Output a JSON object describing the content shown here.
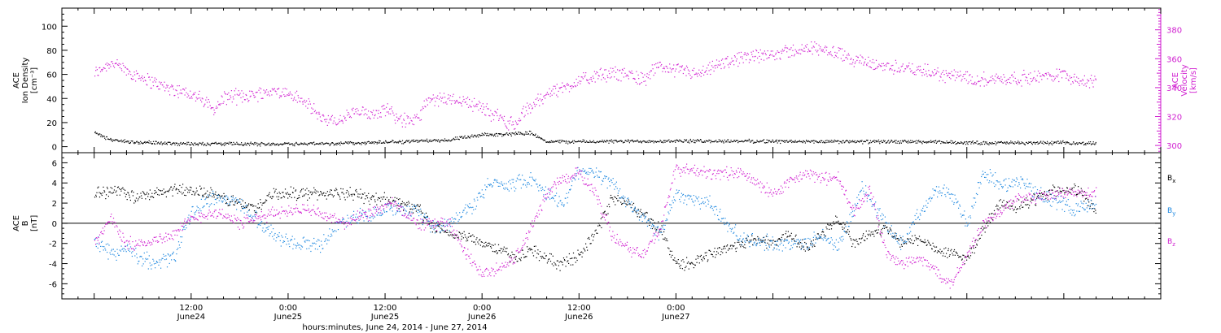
{
  "chart_data": [
    {
      "type": "scatter",
      "panel": "top",
      "left_axis": {
        "title_lines": [
          "ACE",
          "Ion Density",
          "[cm⁻³]"
        ],
        "range": [
          -5,
          115
        ],
        "ticks": [
          0,
          20,
          40,
          60,
          80,
          100
        ],
        "tick_labels": [
          "0",
          "20",
          "40",
          "60",
          "80",
          "100"
        ]
      },
      "right_axis": {
        "title_lines": [
          "ACE",
          "Velocity",
          "[km/s]"
        ],
        "range": [
          295,
          395
        ],
        "ticks": [
          300,
          320,
          340,
          360,
          380
        ],
        "tick_labels": [
          "300",
          "320",
          "340",
          "360",
          "380"
        ],
        "color": "#d01ed0"
      },
      "series": [
        {
          "color": "#000000",
          "axis": "left",
          "trend_x_hours": [
            0,
            1,
            2,
            5,
            10,
            20,
            30,
            36,
            44,
            48,
            52,
            54,
            56,
            60,
            70,
            80,
            90,
            100,
            110,
            120,
            124
          ],
          "trend_y": [
            12,
            9,
            6,
            4,
            3,
            2.5,
            3,
            4,
            6,
            10,
            11,
            12,
            4.5,
            4.5,
            5,
            5,
            4.5,
            4.5,
            3.5,
            3.5,
            3
          ]
        },
        {
          "color": "#d01ed0",
          "axis": "right",
          "trend_x_hours": [
            0,
            2,
            4,
            8,
            12,
            15,
            16,
            18,
            22,
            24,
            26,
            28,
            30,
            32,
            34,
            36,
            38,
            40,
            41,
            44,
            46,
            48,
            50,
            52,
            53,
            55,
            56,
            58,
            60,
            62,
            64,
            66,
            68,
            70,
            72,
            75,
            78,
            84,
            90,
            96,
            100,
            104,
            110,
            116,
            120,
            122,
            124
          ],
          "trend_y": [
            350,
            358,
            352,
            342,
            336,
            325,
            334,
            334,
            338,
            336,
            330,
            320,
            316,
            323,
            322,
            326,
            318,
            318,
            330,
            333,
            331,
            326,
            320,
            314,
            322,
            332,
            336,
            340,
            345,
            348,
            350,
            350,
            346,
            355,
            353,
            349,
            358,
            364,
            368,
            356,
            354,
            350,
            346,
            347,
            350,
            345,
            344
          ]
        }
      ]
    },
    {
      "type": "scatter",
      "panel": "bottom",
      "axis": {
        "title_lines": [
          "ACE",
          "B",
          "[nT]"
        ],
        "range": [
          -7.5,
          7
        ],
        "ticks": [
          -6,
          -4,
          -2,
          0,
          2,
          4,
          6
        ],
        "tick_labels": [
          "-6",
          "-4",
          "-2",
          "0",
          "2",
          "4",
          "6"
        ]
      },
      "zero_line": true,
      "legend": [
        {
          "label": "B",
          "sub": "x",
          "color": "#000000"
        },
        {
          "label": "B",
          "sub": "y",
          "color": "#1e88e0"
        },
        {
          "label": "B",
          "sub": "z",
          "color": "#d01ed0"
        }
      ],
      "series": [
        {
          "label": "Bx",
          "color": "#000000",
          "trend_x_hours": [
            0,
            3,
            5,
            8,
            10,
            14,
            16,
            20,
            22,
            25,
            28,
            32,
            34,
            36,
            40,
            42,
            44,
            47,
            50,
            52,
            54,
            56,
            58,
            60,
            62,
            64,
            66,
            70,
            72,
            74,
            76,
            80,
            82,
            84,
            86,
            88,
            92,
            94,
            96,
            98,
            100,
            102,
            104,
            106,
            108,
            110,
            112,
            114,
            118,
            120,
            122,
            124
          ],
          "trend_y": [
            3,
            3.5,
            2.5,
            3,
            3.5,
            3,
            2.5,
            1.5,
            3,
            3,
            3,
            3,
            2.5,
            2.5,
            1.5,
            -0.5,
            -1,
            -1.5,
            -2.5,
            -3.5,
            -2.5,
            -3.5,
            -4,
            -3,
            -1,
            2.5,
            2,
            -0.5,
            -4,
            -4,
            -3,
            -2,
            -1.5,
            -2,
            -1,
            -2.5,
            0.5,
            -2,
            -1,
            -0.5,
            -2,
            -1.5,
            -2.5,
            -3,
            -3.5,
            -0.5,
            2,
            1.5,
            3,
            3.5,
            3.2,
            1
          ]
        },
        {
          "label": "By",
          "color": "#1e88e0",
          "trend_x_hours": [
            0,
            2,
            4,
            6,
            8,
            10,
            12,
            14,
            16,
            18,
            20,
            22,
            25,
            28,
            31,
            34,
            37,
            40,
            42,
            44,
            47,
            49,
            52,
            54,
            56,
            58,
            60,
            62,
            64,
            66,
            68,
            70,
            72,
            76,
            80,
            84,
            88,
            90,
            92,
            95,
            98,
            100,
            102,
            104,
            106,
            108,
            110,
            112,
            115,
            118,
            121,
            124
          ],
          "trend_y": [
            -1.5,
            -3,
            -2.5,
            -3.5,
            -4,
            -3,
            1,
            2.5,
            2.5,
            2,
            0.5,
            -1,
            -2,
            -2,
            0.5,
            1,
            1.5,
            1,
            -0.5,
            0,
            2,
            4,
            4,
            4.5,
            3,
            2,
            5.5,
            5,
            4,
            2,
            0.5,
            -1,
            3,
            2,
            -1.5,
            -2,
            -2,
            -1,
            -2.5,
            3.5,
            0,
            -2,
            1,
            3.5,
            3,
            0,
            5,
            4,
            4,
            2.5,
            1.5,
            2
          ]
        },
        {
          "label": "Bz",
          "color": "#d01ed0",
          "trend_x_hours": [
            0,
            2,
            4,
            6,
            8,
            10,
            12,
            14,
            16,
            18,
            20,
            22,
            25,
            28,
            31,
            34,
            37,
            40,
            44,
            46,
            48,
            50,
            52,
            54,
            56,
            58,
            60,
            62,
            64,
            66,
            68,
            70,
            72,
            76,
            80,
            84,
            88,
            90,
            92,
            94,
            96,
            98,
            100,
            102,
            104,
            106,
            108,
            110,
            112,
            114,
            116,
            120,
            124
          ],
          "trend_y": [
            -2,
            0.5,
            -2,
            -2,
            -1.5,
            -1,
            0.5,
            1,
            1,
            0,
            0.5,
            1,
            1.5,
            1,
            0,
            1,
            2,
            0,
            0,
            -3,
            -5,
            -4.5,
            -3.5,
            -0.5,
            3,
            4.5,
            5,
            3,
            -1,
            -2.5,
            -3,
            -0.5,
            5.5,
            5,
            5,
            3,
            5,
            4.5,
            4.5,
            1,
            3.5,
            -3,
            -4,
            -3.5,
            -4.5,
            -6,
            -3,
            0,
            1,
            2.5,
            2.5,
            3,
            3
          ]
        }
      ]
    }
  ],
  "x_axis": {
    "range_hours": [
      -4,
      132
    ],
    "tick_positions_hours": [
      12,
      24,
      36,
      48,
      60,
      72,
      84,
      96,
      108,
      120
    ],
    "labels": [
      {
        "at_hours": 12,
        "lines": [
          "12:00",
          "June24"
        ]
      },
      {
        "at_hours": 24,
        "lines": [
          "0:00",
          "June25"
        ]
      },
      {
        "at_hours": 36,
        "lines": [
          "12:00",
          "June25"
        ]
      },
      {
        "at_hours": 48,
        "lines": [
          "0:00",
          "June26"
        ]
      },
      {
        "at_hours": 60,
        "lines": [
          "12:00",
          "June26"
        ]
      },
      {
        "at_hours": 72,
        "lines": [
          "0:00",
          "June27"
        ]
      }
    ],
    "title": "hours:minutes, June 24, 2014 - June 27, 2014"
  }
}
